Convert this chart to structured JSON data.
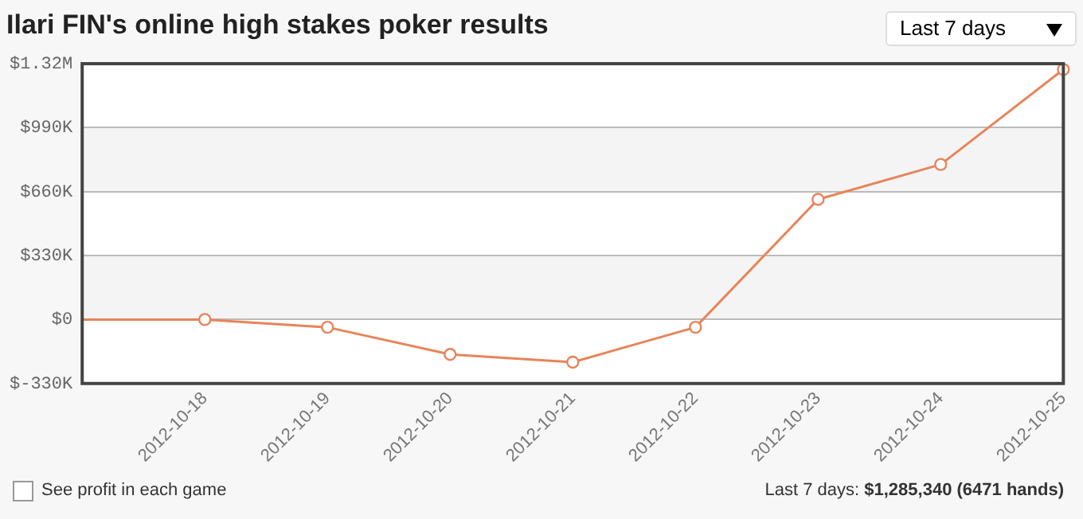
{
  "chart_data": {
    "type": "line",
    "title": "Ilari FIN's online high stakes poker results",
    "categories": [
      null,
      "2012-10-18",
      "2012-10-19",
      "2012-10-20",
      "2012-10-21",
      "2012-10-22",
      "2012-10-23",
      "2012-10-24",
      "2012-10-25"
    ],
    "series": [
      {
        "color": "#e8845a",
        "values": [
          0,
          0,
          -40000,
          -180000,
          -220000,
          -40000,
          620000,
          800000,
          1290000
        ]
      }
    ],
    "ylim": [
      -330000,
      1320000
    ],
    "yticks": [
      {
        "value": -330000,
        "label": "$-330K"
      },
      {
        "value": 0,
        "label": "$0"
      },
      {
        "value": 330000,
        "label": "$330K"
      },
      {
        "value": 660000,
        "label": "$660K"
      },
      {
        "value": 990000,
        "label": "$990K"
      },
      {
        "value": 1320000,
        "label": "$1.32M"
      }
    ],
    "grid": "y",
    "legend": false,
    "marker": "circle",
    "line_style": "solid",
    "annotations": [
      "Last 7 days",
      "See profit in each game",
      "Last 7 days: $1,285,340 (6471 hands)"
    ]
  }
}
